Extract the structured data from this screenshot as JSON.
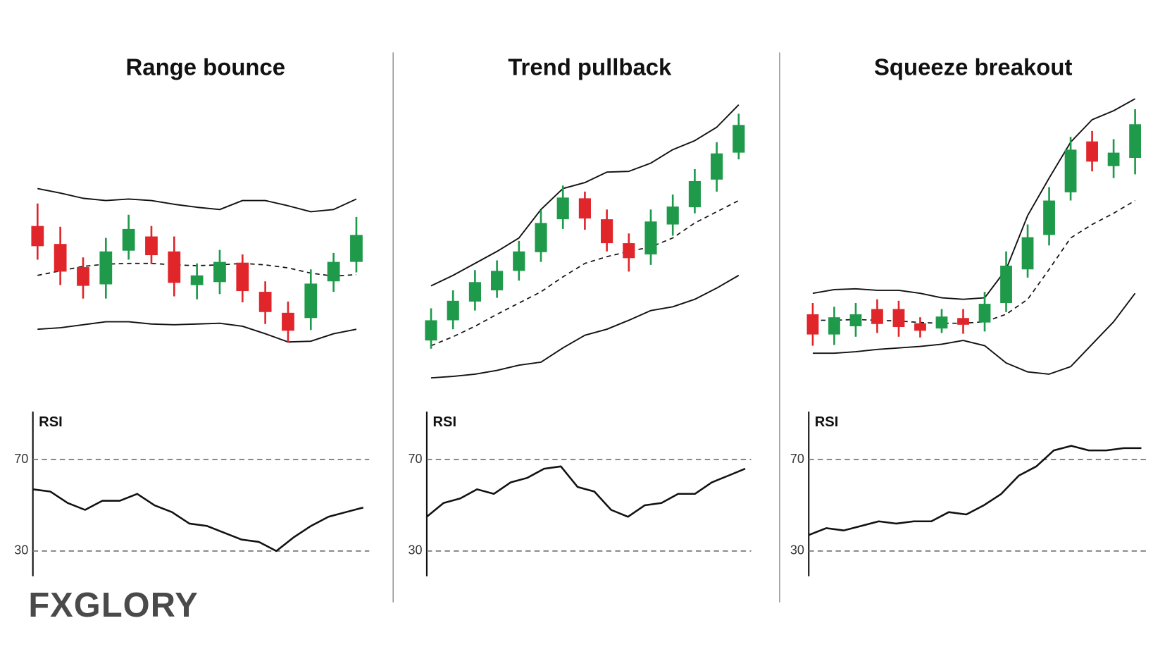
{
  "logo": "FXGLORY",
  "chart_data": [
    {
      "type": "candlestick",
      "title": "Range bounce",
      "ylim": [
        0,
        400
      ],
      "up_color": "#1e9a4a",
      "down_color": "#e0262a",
      "open": [
        218,
        194,
        163,
        140,
        185,
        204,
        184,
        139,
        143,
        169,
        130,
        102,
        95,
        144,
        170
      ],
      "high": [
        248,
        217,
        176,
        202,
        233,
        218,
        204,
        168,
        186,
        180,
        144,
        117,
        160,
        182,
        230
      ],
      "low": [
        173,
        139,
        121,
        121,
        173,
        167,
        124,
        120,
        127,
        116,
        87,
        62,
        79,
        130,
        156
      ],
      "close": [
        191,
        157,
        138,
        184,
        214,
        179,
        142,
        152,
        170,
        131,
        103,
        78,
        141,
        170,
        206
      ],
      "upper": [
        268,
        262,
        255,
        252,
        254,
        252,
        247,
        243,
        240,
        252,
        252,
        245,
        237,
        240,
        254
      ],
      "middle": [
        152,
        158,
        164,
        167,
        168,
        168,
        166,
        165,
        166,
        168,
        166,
        162,
        155,
        151,
        153
      ],
      "lower": [
        80,
        82,
        86,
        90,
        90,
        87,
        86,
        87,
        88,
        84,
        74,
        63,
        64,
        74,
        80
      ],
      "rsi": {
        "label": "RSI",
        "ylim": [
          19,
          91
        ],
        "yticks": [
          70,
          30
        ],
        "values": [
          57,
          56,
          51,
          48,
          52,
          52,
          55,
          50,
          47,
          42,
          41,
          38,
          35,
          34,
          30,
          36,
          41,
          45,
          47,
          49
        ]
      }
    },
    {
      "type": "candlestick",
      "title": "Trend pullback",
      "ylim": [
        0,
        400
      ],
      "up_color": "#1e9a4a",
      "down_color": "#e0262a",
      "open": [
        65,
        92,
        117,
        132,
        158,
        183,
        227,
        255,
        227,
        195,
        180,
        220,
        243,
        280,
        316
      ],
      "high": [
        108,
        132,
        159,
        172,
        198,
        239,
        272,
        264,
        240,
        208,
        240,
        260,
        294,
        330,
        368
      ],
      "low": [
        54,
        80,
        105,
        122,
        145,
        170,
        214,
        213,
        184,
        157,
        166,
        205,
        235,
        264,
        307
      ],
      "close": [
        92,
        118,
        143,
        158,
        184,
        222,
        256,
        228,
        195,
        175,
        224,
        244,
        278,
        315,
        353
      ],
      "upper": [
        138,
        152,
        168,
        184,
        202,
        240,
        268,
        276,
        290,
        291,
        302,
        320,
        332,
        350,
        380
      ],
      "middle": [
        58,
        70,
        84,
        100,
        115,
        130,
        150,
        168,
        177,
        184,
        190,
        202,
        222,
        237,
        252
      ],
      "lower": [
        15,
        17,
        20,
        25,
        32,
        36,
        55,
        72,
        80,
        92,
        105,
        110,
        120,
        135,
        152
      ],
      "rsi": {
        "label": "RSI",
        "ylim": [
          19,
          91
        ],
        "yticks": [
          70,
          30
        ],
        "values": [
          45,
          51,
          53,
          57,
          55,
          60,
          62,
          66,
          67,
          58,
          56,
          48,
          45,
          50,
          51,
          55,
          55,
          60,
          63,
          66
        ]
      }
    },
    {
      "type": "candlestick",
      "title": "Squeeze breakout",
      "ylim": [
        0,
        400
      ],
      "up_color": "#1e9a4a",
      "down_color": "#e0262a",
      "open": [
        100,
        73,
        84,
        107,
        107,
        88,
        81,
        95,
        89,
        115,
        160,
        206,
        263,
        331,
        298,
        309
      ],
      "high": [
        115,
        110,
        115,
        120,
        118,
        96,
        107,
        107,
        130,
        184,
        220,
        270,
        337,
        345,
        334,
        374
      ],
      "low": [
        58,
        59,
        70,
        75,
        70,
        69,
        75,
        74,
        77,
        103,
        149,
        192,
        252,
        291,
        282,
        287
      ],
      "close": [
        73,
        96,
        100,
        87,
        83,
        78,
        97,
        86,
        114,
        165,
        203,
        252,
        320,
        304,
        316,
        354
      ],
      "upper": [
        128,
        133,
        134,
        132,
        132,
        128,
        122,
        120,
        122,
        160,
        232,
        282,
        330,
        360,
        372,
        388
      ],
      "middle": [
        92,
        92,
        93,
        92,
        91,
        89,
        88,
        88,
        90,
        100,
        120,
        160,
        202,
        220,
        235,
        252
      ],
      "lower": [
        48,
        48,
        50,
        53,
        55,
        57,
        60,
        65,
        58,
        35,
        23,
        20,
        30,
        60,
        90,
        128
      ],
      "rsi": {
        "label": "RSI",
        "ylim": [
          19,
          91
        ],
        "yticks": [
          70,
          30
        ],
        "values": [
          37,
          40,
          39,
          41,
          43,
          42,
          43,
          43,
          47,
          46,
          50,
          55,
          63,
          67,
          74,
          76,
          74,
          74,
          75,
          75
        ]
      }
    }
  ]
}
